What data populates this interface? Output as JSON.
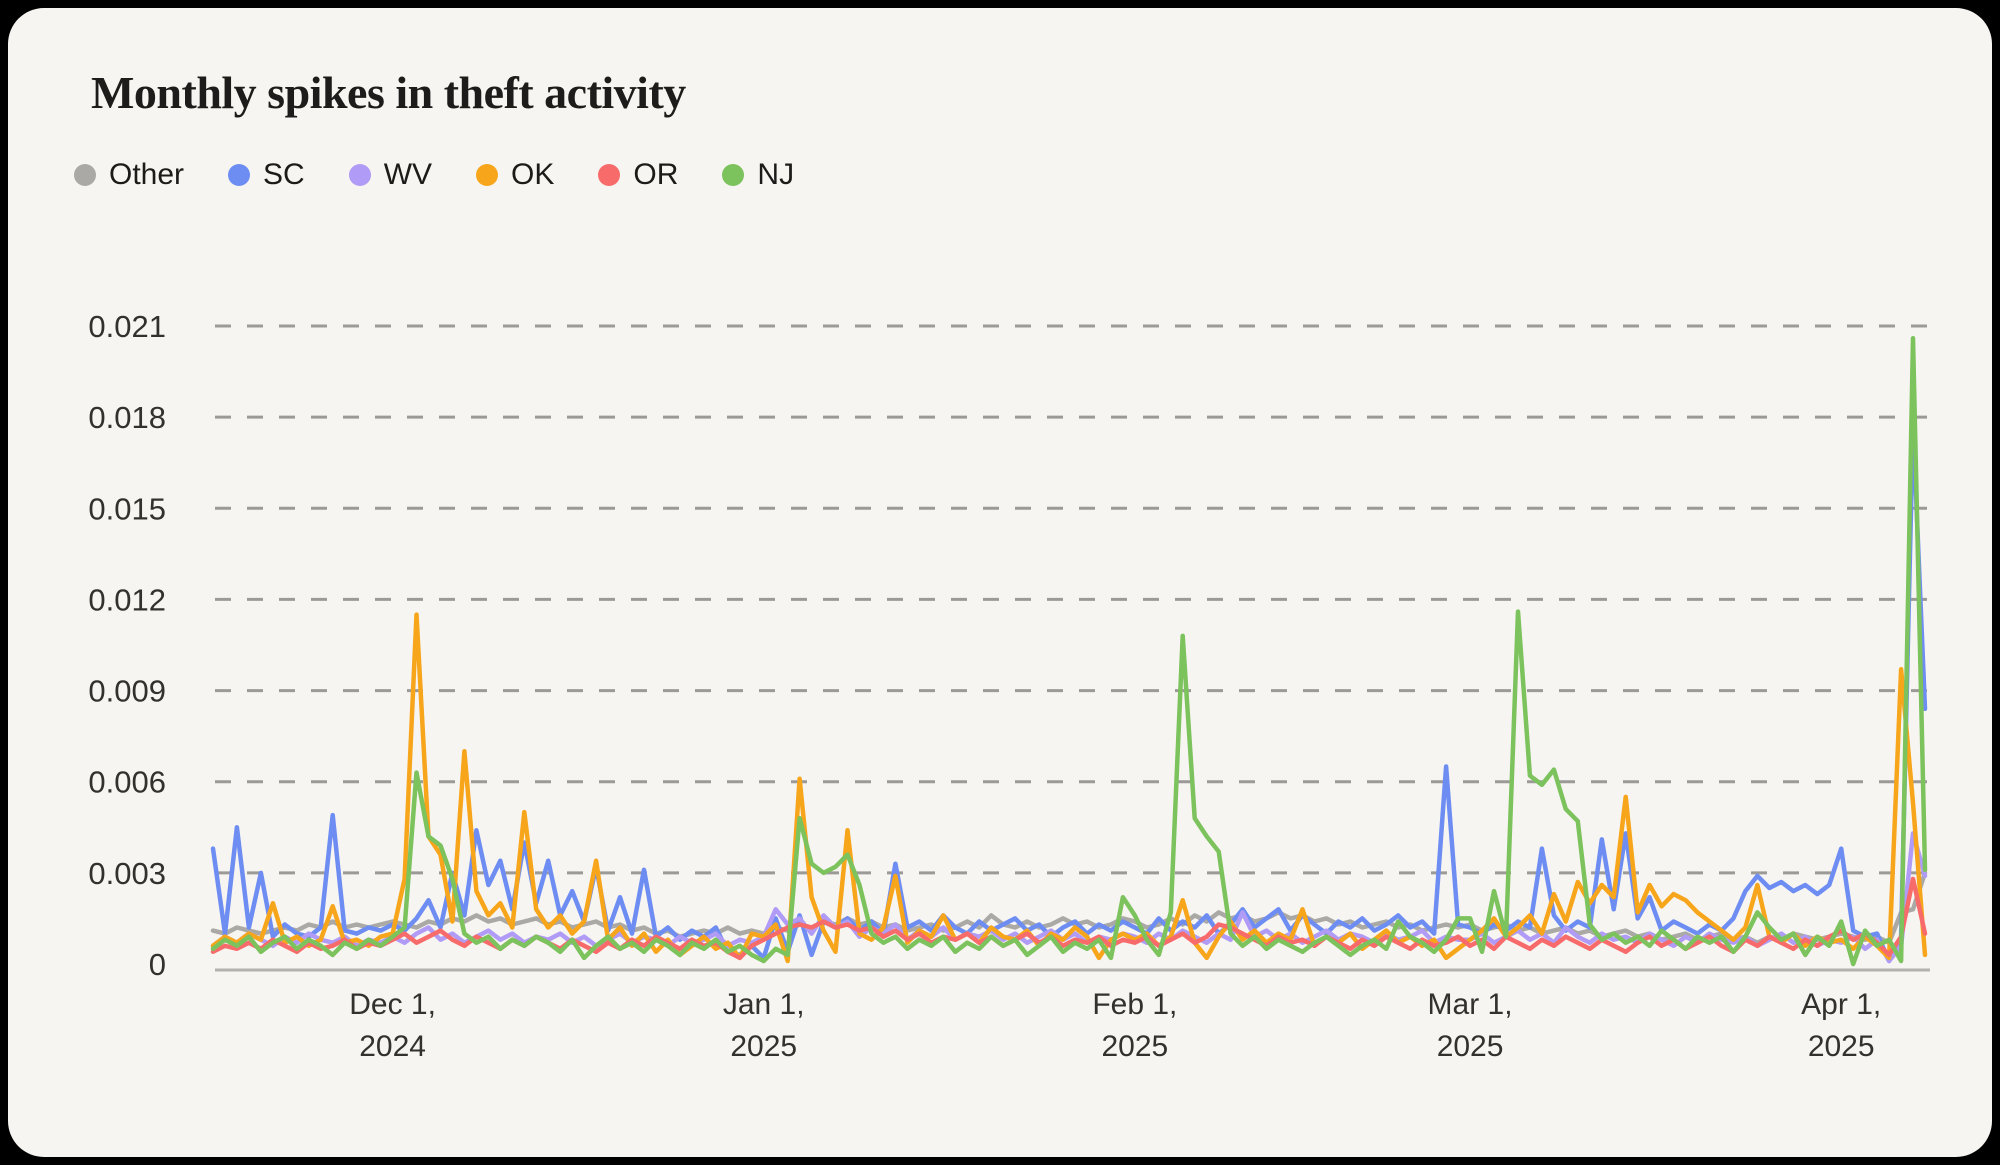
{
  "chart_data": {
    "type": "line",
    "title": "Monthly spikes in theft activity",
    "xlabel": "",
    "ylabel": "",
    "grid": "dashed-horizontal",
    "legend_position": "top-left",
    "y_ticks": [
      0,
      0.003,
      0.006,
      0.009,
      0.012,
      0.015,
      0.018,
      0.021
    ],
    "ylim": [
      0,
      0.0216
    ],
    "x_unit": "day",
    "x_start_date": "2024-11-16",
    "x_end_date": "2025-04-08",
    "x_tick_labels": [
      {
        "day_index": 15,
        "line1": "Dec 1,",
        "line2": "2024"
      },
      {
        "day_index": 46,
        "line1": "Jan 1,",
        "line2": "2025"
      },
      {
        "day_index": 77,
        "line1": "Feb 1,",
        "line2": "2025"
      },
      {
        "day_index": 105,
        "line1": "Mar 1,",
        "line2": "2025"
      },
      {
        "day_index": 136,
        "line1": "Apr 1,",
        "line2": "2025"
      }
    ],
    "series": [
      {
        "name": "Other",
        "color": "#ABA9A6",
        "values": [
          0.0011,
          0.001,
          0.0012,
          0.0011,
          0.001,
          0.0011,
          0.0012,
          0.0011,
          0.0013,
          0.0012,
          0.0014,
          0.0012,
          0.0013,
          0.0012,
          0.0013,
          0.0014,
          0.0013,
          0.0012,
          0.0014,
          0.0013,
          0.0015,
          0.0014,
          0.0016,
          0.0014,
          0.0015,
          0.0013,
          0.0014,
          0.0015,
          0.0013,
          0.0014,
          0.0012,
          0.0013,
          0.0014,
          0.0012,
          0.0013,
          0.0011,
          0.0012,
          0.001,
          0.0011,
          0.0009,
          0.001,
          0.0011,
          0.001,
          0.0012,
          0.001,
          0.0011,
          0.001,
          0.0012,
          0.0011,
          0.0013,
          0.0012,
          0.0014,
          0.0013,
          0.0015,
          0.0013,
          0.0014,
          0.0012,
          0.0013,
          0.0011,
          0.0012,
          0.0013,
          0.0011,
          0.0012,
          0.0014,
          0.0012,
          0.0016,
          0.0013,
          0.0012,
          0.0014,
          0.0012,
          0.0013,
          0.0015,
          0.0013,
          0.0014,
          0.0012,
          0.0013,
          0.0015,
          0.0014,
          0.0012,
          0.0013,
          0.0015,
          0.0013,
          0.0016,
          0.0014,
          0.0017,
          0.0015,
          0.0016,
          0.0014,
          0.0015,
          0.0017,
          0.0015,
          0.0016,
          0.0014,
          0.0015,
          0.0013,
          0.0014,
          0.0012,
          0.0013,
          0.0014,
          0.0012,
          0.0013,
          0.0011,
          0.0012,
          0.0013,
          0.0012,
          0.0013,
          0.0011,
          0.0012,
          0.0013,
          0.0011,
          0.0012,
          0.001,
          0.0011,
          0.0012,
          0.001,
          0.0011,
          0.0009,
          0.001,
          0.0011,
          0.0009,
          0.001,
          0.0008,
          0.0009,
          0.001,
          0.0008,
          0.0009,
          0.001,
          0.0008,
          0.0009,
          0.0007,
          0.0009,
          0.0008,
          0.001,
          0.0009,
          0.0008,
          0.0009,
          0.001,
          0.0009,
          0.0008,
          0.0009,
          0.0007,
          0.0017,
          0.0018,
          0.003
        ]
      },
      {
        "name": "SC",
        "color": "#6D8DF3",
        "values": [
          0.0038,
          0.001,
          0.0045,
          0.0012,
          0.003,
          0.0009,
          0.0013,
          0.001,
          0.0009,
          0.0012,
          0.0049,
          0.0011,
          0.001,
          0.0012,
          0.0011,
          0.0013,
          0.0011,
          0.0015,
          0.0021,
          0.0012,
          0.003,
          0.0016,
          0.0044,
          0.0026,
          0.0034,
          0.0018,
          0.004,
          0.002,
          0.0034,
          0.0016,
          0.0024,
          0.0014,
          0.0032,
          0.0011,
          0.0022,
          0.001,
          0.0031,
          0.0009,
          0.0012,
          0.0008,
          0.0011,
          0.0009,
          0.0012,
          0.0004,
          0.0003,
          0.0006,
          0.0002,
          0.0015,
          0.0004,
          0.0016,
          0.0003,
          0.0014,
          0.0012,
          0.0015,
          0.0011,
          0.0014,
          0.001,
          0.0033,
          0.0012,
          0.0014,
          0.0011,
          0.0016,
          0.0012,
          0.001,
          0.0014,
          0.0011,
          0.0013,
          0.0015,
          0.0011,
          0.0013,
          0.0009,
          0.0012,
          0.0014,
          0.001,
          0.0013,
          0.0011,
          0.0014,
          0.0012,
          0.001,
          0.0015,
          0.0011,
          0.0014,
          0.0012,
          0.0016,
          0.001,
          0.0013,
          0.0018,
          0.0012,
          0.0015,
          0.0018,
          0.0011,
          0.0016,
          0.0013,
          0.001,
          0.0014,
          0.0012,
          0.0015,
          0.0011,
          0.0013,
          0.0016,
          0.0012,
          0.0014,
          0.001,
          0.0065,
          0.0013,
          0.0012,
          0.001,
          0.0013,
          0.0011,
          0.0014,
          0.0012,
          0.0038,
          0.0016,
          0.0011,
          0.0014,
          0.0012,
          0.0041,
          0.0018,
          0.0043,
          0.0015,
          0.0022,
          0.0011,
          0.0014,
          0.0012,
          0.001,
          0.0013,
          0.0011,
          0.0015,
          0.0024,
          0.0029,
          0.0025,
          0.0027,
          0.0024,
          0.0026,
          0.0023,
          0.0026,
          0.0038,
          0.0011,
          0.0009,
          0.001,
          0.0001,
          0.0009,
          0.0178,
          0.0084
        ]
      },
      {
        "name": "WV",
        "color": "#B09BF6",
        "values": [
          0.0006,
          0.0009,
          0.0007,
          0.001,
          0.0008,
          0.0006,
          0.0009,
          0.0007,
          0.001,
          0.0008,
          0.0007,
          0.0009,
          0.0006,
          0.0008,
          0.0007,
          0.0009,
          0.0007,
          0.001,
          0.0012,
          0.0008,
          0.001,
          0.0007,
          0.0009,
          0.0011,
          0.0008,
          0.001,
          0.0007,
          0.0009,
          0.0008,
          0.001,
          0.0007,
          0.0009,
          0.0006,
          0.0008,
          0.001,
          0.0007,
          0.0009,
          0.0008,
          0.0006,
          0.0009,
          0.0007,
          0.0008,
          0.001,
          0.0006,
          0.0008,
          0.0007,
          0.0009,
          0.0018,
          0.0013,
          0.0015,
          0.001,
          0.0016,
          0.0012,
          0.0014,
          0.0009,
          0.0012,
          0.001,
          0.0013,
          0.0008,
          0.0011,
          0.0009,
          0.0012,
          0.0008,
          0.001,
          0.0009,
          0.0011,
          0.0008,
          0.001,
          0.0007,
          0.0009,
          0.0011,
          0.0008,
          0.001,
          0.0007,
          0.0009,
          0.0008,
          0.001,
          0.0009,
          0.0007,
          0.001,
          0.0008,
          0.0011,
          0.0009,
          0.0007,
          0.001,
          0.0008,
          0.0017,
          0.0009,
          0.0011,
          0.0008,
          0.001,
          0.0007,
          0.0009,
          0.0011,
          0.0008,
          0.001,
          0.0009,
          0.0007,
          0.001,
          0.0008,
          0.0009,
          0.0011,
          0.0007,
          0.0009,
          0.0008,
          0.0008,
          0.001,
          0.0007,
          0.0009,
          0.0011,
          0.0008,
          0.001,
          0.0007,
          0.0012,
          0.0009,
          0.0007,
          0.001,
          0.0008,
          0.0009,
          0.0007,
          0.001,
          0.0008,
          0.0006,
          0.0009,
          0.0007,
          0.001,
          0.0008,
          0.0007,
          0.0009,
          0.0006,
          0.0008,
          0.001,
          0.0007,
          0.0009,
          0.0006,
          0.0008,
          0.0007,
          0.0009,
          0.0005,
          0.0008,
          0.0001,
          0.0006,
          0.0043,
          0.0029
        ]
      },
      {
        "name": "OK",
        "color": "#F7A51B",
        "values": [
          0.0006,
          0.0009,
          0.0007,
          0.001,
          0.0008,
          0.002,
          0.0007,
          0.0009,
          0.0006,
          0.0008,
          0.0019,
          0.0007,
          0.0008,
          0.0006,
          0.0009,
          0.001,
          0.0028,
          0.0115,
          0.0042,
          0.0036,
          0.0014,
          0.007,
          0.0024,
          0.0016,
          0.002,
          0.0012,
          0.005,
          0.0018,
          0.0012,
          0.0016,
          0.001,
          0.0014,
          0.0034,
          0.0008,
          0.0012,
          0.0006,
          0.001,
          0.0004,
          0.0008,
          0.0003,
          0.0006,
          0.0009,
          0.0005,
          0.0007,
          0.0002,
          0.001,
          0.0009,
          0.0013,
          0.0001,
          0.0061,
          0.0022,
          0.0011,
          0.0004,
          0.0044,
          0.001,
          0.0008,
          0.0012,
          0.0029,
          0.0007,
          0.0011,
          0.0009,
          0.0016,
          0.0008,
          0.001,
          0.0007,
          0.0012,
          0.0009,
          0.0008,
          0.0011,
          0.0006,
          0.001,
          0.0008,
          0.0012,
          0.0009,
          0.0002,
          0.0008,
          0.001,
          0.0008,
          0.001,
          0.0006,
          0.0009,
          0.0021,
          0.0007,
          0.0002,
          0.0009,
          0.0014,
          0.0008,
          0.0011,
          0.0007,
          0.001,
          0.0008,
          0.0018,
          0.0006,
          0.0009,
          0.0007,
          0.001,
          0.0005,
          0.0008,
          0.0011,
          0.0007,
          0.0009,
          0.0006,
          0.0008,
          0.0002,
          0.0005,
          0.0008,
          0.0011,
          0.0015,
          0.0009,
          0.0012,
          0.0016,
          0.001,
          0.0023,
          0.0014,
          0.0027,
          0.002,
          0.0026,
          0.0022,
          0.0055,
          0.0017,
          0.0026,
          0.0019,
          0.0023,
          0.0021,
          0.0017,
          0.0014,
          0.0011,
          0.0008,
          0.0012,
          0.0026,
          0.0009,
          0.0007,
          0.001,
          0.0006,
          0.0009,
          0.0007,
          0.0008,
          0.0005,
          0.0009,
          0.0006,
          0.0002,
          0.0097,
          0.0053,
          0.0003
        ]
      },
      {
        "name": "OR",
        "color": "#F76B6B",
        "values": [
          0.0004,
          0.0006,
          0.0005,
          0.0007,
          0.0005,
          0.0008,
          0.0006,
          0.0004,
          0.0007,
          0.0005,
          0.0006,
          0.0008,
          0.0005,
          0.0007,
          0.0006,
          0.0008,
          0.001,
          0.0007,
          0.0009,
          0.0011,
          0.0008,
          0.0006,
          0.0009,
          0.0007,
          0.0005,
          0.0008,
          0.0006,
          0.0009,
          0.0007,
          0.0005,
          0.0008,
          0.0006,
          0.0004,
          0.0007,
          0.0005,
          0.0008,
          0.0006,
          0.0009,
          0.0007,
          0.0005,
          0.0008,
          0.0006,
          0.0007,
          0.0004,
          0.0002,
          0.0006,
          0.0008,
          0.001,
          0.0012,
          0.0013,
          0.0012,
          0.0014,
          0.0012,
          0.0013,
          0.0011,
          0.0012,
          0.0009,
          0.0011,
          0.0008,
          0.001,
          0.0007,
          0.0009,
          0.0008,
          0.001,
          0.0007,
          0.0009,
          0.0006,
          0.0008,
          0.001,
          0.0007,
          0.0009,
          0.0006,
          0.0008,
          0.0007,
          0.0009,
          0.0006,
          0.0008,
          0.0007,
          0.0009,
          0.0006,
          0.0008,
          0.001,
          0.0007,
          0.0009,
          0.0013,
          0.0012,
          0.001,
          0.0008,
          0.0006,
          0.0009,
          0.0007,
          0.0008,
          0.0006,
          0.0009,
          0.0007,
          0.0005,
          0.0008,
          0.0006,
          0.0009,
          0.0007,
          0.0005,
          0.0008,
          0.0006,
          0.0007,
          0.0009,
          0.0006,
          0.0008,
          0.0005,
          0.0009,
          0.0007,
          0.0005,
          0.0008,
          0.0006,
          0.0009,
          0.0007,
          0.0005,
          0.0008,
          0.0006,
          0.0004,
          0.0007,
          0.0009,
          0.0006,
          0.0008,
          0.0005,
          0.0007,
          0.0009,
          0.0006,
          0.0004,
          0.0008,
          0.0006,
          0.0009,
          0.0007,
          0.0005,
          0.0008,
          0.0006,
          0.0009,
          0.0011,
          0.0008,
          0.001,
          0.0007,
          0.0003,
          0.0009,
          0.0028,
          0.001
        ]
      },
      {
        "name": "NJ",
        "color": "#7CC25D",
        "values": [
          0.0005,
          0.0008,
          0.0006,
          0.0009,
          0.0004,
          0.0007,
          0.0009,
          0.0005,
          0.0008,
          0.0006,
          0.0003,
          0.0007,
          0.0005,
          0.0008,
          0.0006,
          0.0009,
          0.0012,
          0.0063,
          0.0042,
          0.0039,
          0.0028,
          0.001,
          0.0007,
          0.0009,
          0.0005,
          0.0008,
          0.0006,
          0.0009,
          0.0007,
          0.0004,
          0.0008,
          0.0002,
          0.0006,
          0.0009,
          0.0005,
          0.0007,
          0.0004,
          0.0008,
          0.0006,
          0.0003,
          0.0007,
          0.0005,
          0.0008,
          0.0004,
          0.0006,
          0.0003,
          0.0001,
          0.0005,
          0.0003,
          0.0048,
          0.0033,
          0.003,
          0.0032,
          0.0036,
          0.0026,
          0.001,
          0.0007,
          0.0009,
          0.0005,
          0.0008,
          0.0006,
          0.0009,
          0.0004,
          0.0007,
          0.0005,
          0.0009,
          0.0006,
          0.0008,
          0.0003,
          0.0006,
          0.0009,
          0.0004,
          0.0007,
          0.0005,
          0.0008,
          0.0002,
          0.0022,
          0.0016,
          0.0008,
          0.0003,
          0.0017,
          0.0108,
          0.0048,
          0.0042,
          0.0037,
          0.001,
          0.0006,
          0.0009,
          0.0005,
          0.0008,
          0.0006,
          0.0004,
          0.0007,
          0.0009,
          0.0006,
          0.0003,
          0.0006,
          0.0008,
          0.0005,
          0.0014,
          0.0009,
          0.0007,
          0.0004,
          0.0008,
          0.0015,
          0.0015,
          0.0004,
          0.0024,
          0.0009,
          0.0116,
          0.0062,
          0.0059,
          0.0064,
          0.0051,
          0.0047,
          0.0013,
          0.0008,
          0.001,
          0.0007,
          0.0009,
          0.0006,
          0.0011,
          0.0008,
          0.0005,
          0.0009,
          0.0007,
          0.0009,
          0.0004,
          0.0009,
          0.0017,
          0.0012,
          0.0008,
          0.001,
          0.0003,
          0.0009,
          0.0006,
          0.0014,
          0.0,
          0.0011,
          0.0006,
          0.0008,
          0.0001,
          0.0206,
          0.0031
        ]
      }
    ]
  }
}
